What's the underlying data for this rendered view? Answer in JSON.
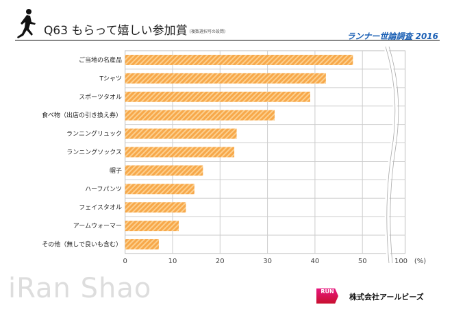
{
  "header": {
    "title": "Q63 もらって嬉しい参加賞",
    "subtitle": "(複数選択可の設問)",
    "survey": "ランナー世論調査 2016"
  },
  "footer": {
    "watermark": "iRan Shao",
    "company": "株式会社アールビーズ",
    "logo_text": "RUN"
  },
  "colors": {
    "bar": "#f7a84a",
    "stripe": "#fcd08f",
    "grid": "#bbbbbb",
    "accent": "#1a5fb4"
  },
  "chart_data": {
    "type": "bar",
    "orientation": "horizontal",
    "categories": [
      "ご当地の名産品",
      "Tシャツ",
      "スポーツタオル",
      "食べ物（出店の引き換え券）",
      "ランニングリュック",
      "ランニングソックス",
      "帽子",
      "ハーフパンツ",
      "フェイスタオル",
      "アームウォーマー",
      "その他（無しで良いも含む）"
    ],
    "values": [
      48.0,
      42.3,
      39.0,
      31.5,
      23.5,
      23.0,
      16.4,
      14.6,
      12.8,
      11.3,
      7.1
    ],
    "xticks": [
      "0",
      "10",
      "20",
      "30",
      "40",
      "50",
      "100"
    ],
    "xunit": "(%)",
    "axis_break": "between 50 and 100",
    "xlim": [
      0,
      100
    ],
    "grid": true
  }
}
